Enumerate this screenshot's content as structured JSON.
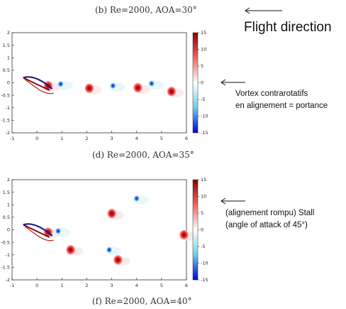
{
  "captions": {
    "b": "(b) Re=2000, AOA=30°",
    "d": "(d) Re=2000, AOA=35°",
    "f": "(f) Re=2000, AOA=40°"
  },
  "annotations": {
    "flight_direction": "Flight direction",
    "vortex_line1": "Vortex contrarotatifs",
    "vortex_line2": "en alignement = portance",
    "stall_line1": "(alignement rompu) Stall",
    "stall_line2": "(angle of attack of 45°)"
  },
  "chart_data": [
    {
      "type": "heatmap",
      "caption_above": "(b) Re=2000, AOA=30°",
      "caption_below": "(d) Re=2000, AOA=35°",
      "xlim": [
        -1,
        6
      ],
      "ylim": [
        -2,
        2
      ],
      "x_ticks": [
        -1,
        0,
        1,
        2,
        3,
        4,
        5,
        6
      ],
      "y_ticks": [
        -2,
        -1.5,
        -1,
        -0.5,
        0,
        0.5,
        1,
        1.5,
        2
      ],
      "colorbar": {
        "range": [
          -15,
          15
        ],
        "ticks": [
          15,
          10,
          5,
          0,
          -5,
          -10,
          -15
        ]
      },
      "vortices": [
        {
          "x": 0.45,
          "y": -0.12,
          "sign": 1
        },
        {
          "x": 0.95,
          "y": -0.05,
          "sign": -1
        },
        {
          "x": 2.1,
          "y": -0.22,
          "sign": 1
        },
        {
          "x": 3.05,
          "y": -0.12,
          "sign": -1
        },
        {
          "x": 4.05,
          "y": -0.2,
          "sign": 1
        },
        {
          "x": 4.6,
          "y": -0.03,
          "sign": -1
        },
        {
          "x": 5.4,
          "y": -0.35,
          "sign": 1
        }
      ]
    },
    {
      "type": "heatmap",
      "caption_below": "(f) Re=2000, AOA=40°",
      "xlim": [
        -1,
        6
      ],
      "ylim": [
        -2,
        2
      ],
      "x_ticks": [
        -1,
        0,
        1,
        2,
        3,
        4,
        5,
        6
      ],
      "y_ticks": [
        -2,
        -1.5,
        -1,
        -0.5,
        0,
        0.5,
        1,
        1.5,
        2
      ],
      "colorbar": {
        "range": [
          -15,
          15
        ],
        "ticks": [
          15,
          10,
          5,
          0,
          -5,
          -10,
          -15
        ]
      },
      "vortices": [
        {
          "x": 0.45,
          "y": -0.1,
          "sign": 1
        },
        {
          "x": 0.85,
          "y": -0.05,
          "sign": -1
        },
        {
          "x": 1.35,
          "y": -0.8,
          "sign": 1
        },
        {
          "x": 3.0,
          "y": 0.65,
          "sign": 1
        },
        {
          "x": 4.0,
          "y": 1.25,
          "sign": -1
        },
        {
          "x": 2.9,
          "y": -0.8,
          "sign": -1
        },
        {
          "x": 3.25,
          "y": -1.2,
          "sign": 1
        },
        {
          "x": 5.9,
          "y": -0.2,
          "sign": 1
        }
      ]
    }
  ]
}
